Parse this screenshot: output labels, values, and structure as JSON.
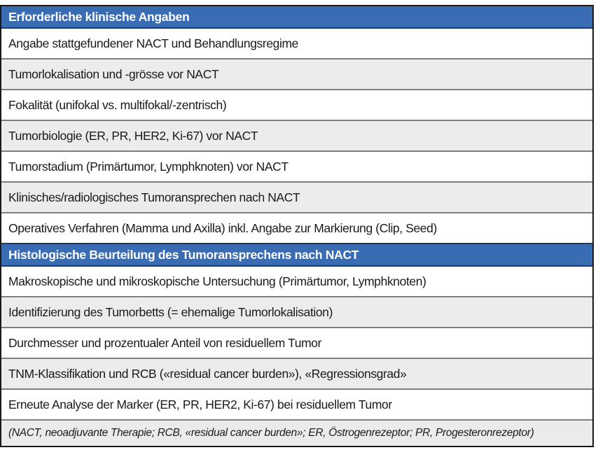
{
  "table": {
    "sections": [
      {
        "header": "Erforderliche klinische Angaben",
        "rows": [
          "Angabe stattgefundener NACT und Behandlungsregime",
          "Tumorlokalisation und -grösse vor NACT",
          "Fokalität (unifokal vs. multifokal/-zentrisch)",
          "Tumorbiologie (ER, PR, HER2, Ki-67) vor NACT",
          "Tumorstadium (Primärtumor, Lymphknoten) vor NACT",
          "Klinisches/radiologisches Tumoransprechen nach NACT",
          "Operatives Verfahren (Mamma und Axilla) inkl. Angabe zur Markierung (Clip, Seed)"
        ]
      },
      {
        "header": "Histologische Beurteilung des Tumoransprechens nach NACT",
        "rows": [
          "Makroskopische und mikroskopische Untersuchung (Primärtumor, Lymphknoten)",
          "Identifizierung des Tumorbetts (= ehemalige Tumorlokalisation)",
          "Durchmesser und prozentualer Anteil von residuellem Tumor",
          "TNM-Klassifikation und RCB («residual cancer burden»), «Regressionsgrad»",
          "Erneute Analyse der Marker (ER, PR, HER2, Ki-67) bei residuellem Tumor"
        ]
      }
    ],
    "footnote": "(NACT, neoadjuvante Therapie; RCB, «residual cancer burden»; ER, Östrogenrezeptor; PR, Progesteronrezeptor)"
  },
  "colors": {
    "header_bg": "#3a6cb4",
    "header_border": "#1e3a66",
    "header_text": "#ffffff",
    "row_bg": "#ffffff",
    "row_alt_bg": "#ececec",
    "row_separator": "#7f7f7f",
    "outer_border": "#1a1a1a",
    "footnote_bg": "#ebebeb",
    "body_text": "#1a1a1a"
  }
}
